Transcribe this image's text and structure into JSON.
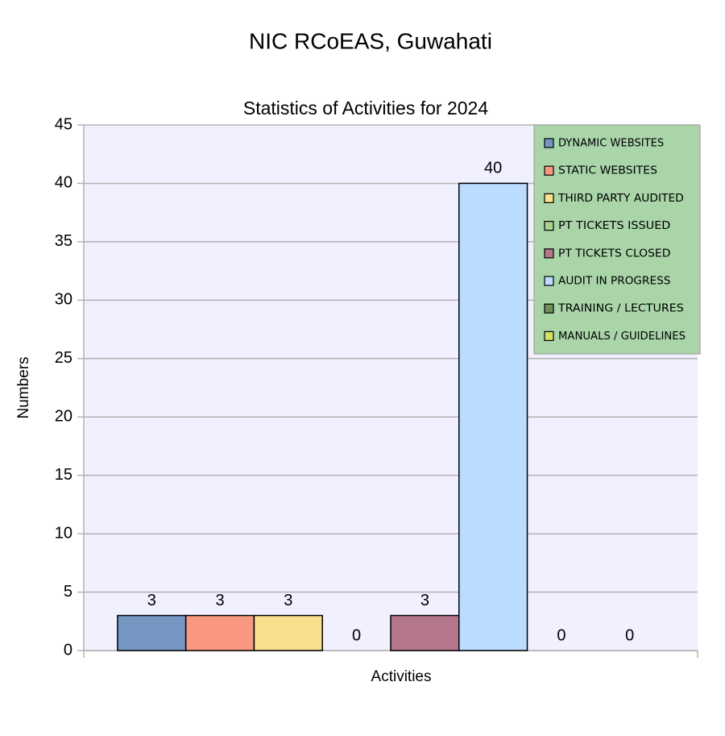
{
  "chart_data": {
    "type": "bar",
    "title": "NIC RCoEAS, Guwahati",
    "subtitle": "Statistics of Activities for 2024",
    "y_label": "Numbers",
    "x_label": "Activities",
    "ylim": [
      0,
      45
    ],
    "yticks": [
      0,
      5,
      10,
      15,
      20,
      25,
      30,
      35,
      40,
      45
    ],
    "grid": true,
    "legend": "top-right",
    "series": [
      {
        "name": "DYNAMIC WEBSITES",
        "color": "#7596c1",
        "values": [
          3
        ]
      },
      {
        "name": "STATIC WEBSITES",
        "color": "#f89880",
        "values": [
          3
        ]
      },
      {
        "name": "THIRD PARTY AUDITED",
        "color": "#f8e08e",
        "values": [
          3
        ]
      },
      {
        "name": "PT TICKETS ISSUED",
        "color": "#a9d18e",
        "values": [
          0
        ]
      },
      {
        "name": "PT TICKETS CLOSED",
        "color": "#b5778c",
        "values": [
          3
        ]
      },
      {
        "name": "AUDIT IN PROGRESS",
        "color": "#bbdcff",
        "values": [
          40
        ]
      },
      {
        "name": "TRAINING / LECTURES",
        "color": "#6e8f57",
        "values": [
          0
        ]
      },
      {
        "name": "MANUALS / GUIDELINES",
        "color": "#d4e06b",
        "values": [
          0
        ]
      }
    ]
  }
}
